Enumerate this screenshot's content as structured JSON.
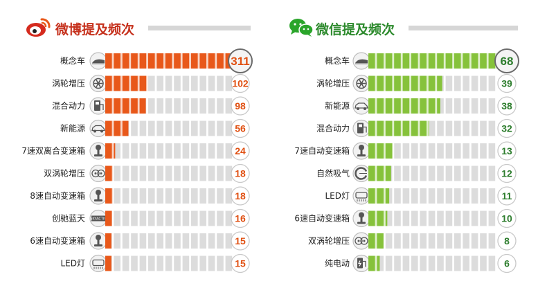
{
  "colors": {
    "weibo": "#e8581a",
    "wechat": "#86c23b",
    "wechat_title": "#2d8a2d",
    "weibo_title": "#c6321e",
    "track": "#dcdcdc",
    "icon_bg": "#f2f2f2"
  },
  "weibo": {
    "title": "微博提及频次",
    "logo_icon": "weibo-logo-icon",
    "chart_data": {
      "type": "bar",
      "orientation": "horizontal",
      "max": 311,
      "categories": [
        "概念车",
        "涡轮增压",
        "混合动力",
        "新能源",
        "7速双离合变速箱",
        "双涡轮增压",
        "8速自动变速箱",
        "创驰蓝天",
        "6速自动变速箱",
        "LED灯"
      ],
      "values": [
        311,
        102,
        98,
        56,
        24,
        18,
        18,
        16,
        15,
        15
      ],
      "labels": [
        "311",
        "102",
        "98",
        "56",
        "24",
        "18",
        "18",
        "16",
        "15",
        "15"
      ],
      "icons": [
        "concept-car-icon",
        "turbo-icon",
        "hybrid-charger-icon",
        "ev-car-icon",
        "gear-shift-icon",
        "twin-turbo-icon",
        "gear-shift-icon",
        "skyactiv-badge-icon",
        "gear-shift-icon",
        "led-light-icon"
      ],
      "skyactiv_badge": "SKYACTIV"
    }
  },
  "wechat": {
    "title": "微信提及频次",
    "logo_icon": "wechat-logo-icon",
    "chart_data": {
      "type": "bar",
      "orientation": "horizontal",
      "max": 68,
      "categories": [
        "概念车",
        "涡轮增压",
        "新能源",
        "混合动力",
        "7速自动变速箱",
        "自然吸气",
        "LED灯",
        "6速自动变速箱",
        "双涡轮增压",
        "纯电动"
      ],
      "values": [
        68,
        39,
        38,
        32,
        13,
        12,
        11,
        10,
        8,
        6
      ],
      "labels": [
        "68",
        "39",
        "38",
        "32",
        "13",
        "12",
        "11",
        "10",
        "8",
        "6"
      ],
      "icons": [
        "concept-car-icon",
        "turbo-icon",
        "ev-car-icon",
        "hybrid-charger-icon",
        "gear-shift-icon",
        "naturally-aspirated-icon",
        "led-light-icon",
        "gear-shift-icon",
        "twin-turbo-icon",
        "ev-charger-icon"
      ]
    }
  }
}
